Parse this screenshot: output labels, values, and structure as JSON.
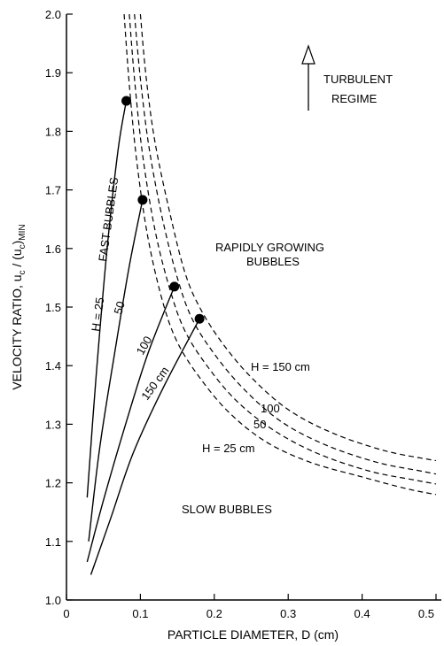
{
  "chart_data": {
    "type": "line",
    "xlabel": "PARTICLE DIAMETER, D (cm)",
    "ylabel": "VELOCITY RATIO, u",
    "ylabel_sub1": "c",
    "ylabel_mid": " / (u",
    "ylabel_sub2": "c",
    "ylabel_end": ")",
    "ylabel_sub3": "MIN",
    "xlim": [
      0,
      0.5
    ],
    "ylim": [
      1.0,
      2.0
    ],
    "xticks": [
      "0",
      "0.1",
      "0.2",
      "0.3",
      "0.4",
      "0.5"
    ],
    "yticks": [
      "1.0",
      "1.1",
      "1.2",
      "1.3",
      "1.4",
      "1.5",
      "1.6",
      "1.7",
      "1.8",
      "1.9",
      "2.0"
    ],
    "xtick_values": [
      0,
      0.1,
      0.2,
      0.3,
      0.4,
      0.5
    ],
    "ytick_values": [
      1.0,
      1.1,
      1.2,
      1.3,
      1.4,
      1.5,
      1.6,
      1.7,
      1.8,
      1.9,
      2.0
    ],
    "grid": false,
    "series": [
      {
        "name": "H = 25",
        "style": "solid",
        "x": [
          0.028,
          0.04,
          0.055,
          0.07,
          0.081
        ],
        "y": [
          1.175,
          1.38,
          1.6,
          1.77,
          1.852
        ]
      },
      {
        "name": "50",
        "style": "solid",
        "x": [
          0.03,
          0.045,
          0.065,
          0.085,
          0.103
        ],
        "y": [
          1.1,
          1.26,
          1.42,
          1.57,
          1.683
        ]
      },
      {
        "name": "100",
        "style": "solid",
        "x": [
          0.028,
          0.05,
          0.08,
          0.11,
          0.146
        ],
        "y": [
          1.065,
          1.17,
          1.3,
          1.42,
          1.535
        ]
      },
      {
        "name": "150 cm",
        "style": "solid",
        "x": [
          0.033,
          0.06,
          0.09,
          0.13,
          0.18
        ],
        "y": [
          1.043,
          1.14,
          1.25,
          1.36,
          1.48
        ]
      },
      {
        "name": "H = 25 cm",
        "style": "dashed",
        "x": [
          0.078,
          0.085,
          0.095,
          0.11,
          0.13,
          0.15,
          0.18,
          0.22,
          0.27,
          0.33,
          0.4,
          0.46,
          0.5
        ],
        "y": [
          2.0,
          1.88,
          1.75,
          1.62,
          1.51,
          1.44,
          1.38,
          1.32,
          1.27,
          1.235,
          1.21,
          1.19,
          1.18
        ]
      },
      {
        "name": "50",
        "style": "dashed",
        "x": [
          0.085,
          0.092,
          0.103,
          0.12,
          0.14,
          0.16,
          0.19,
          0.23,
          0.28,
          0.34,
          0.41,
          0.47,
          0.5
        ],
        "y": [
          2.0,
          1.89,
          1.76,
          1.63,
          1.53,
          1.46,
          1.4,
          1.34,
          1.29,
          1.25,
          1.22,
          1.205,
          1.198
        ]
      },
      {
        "name": "100",
        "style": "dashed",
        "x": [
          0.092,
          0.1,
          0.112,
          0.13,
          0.15,
          0.17,
          0.2,
          0.24,
          0.29,
          0.35,
          0.42,
          0.48,
          0.5
        ],
        "y": [
          2.0,
          1.89,
          1.77,
          1.65,
          1.55,
          1.48,
          1.42,
          1.36,
          1.305,
          1.265,
          1.235,
          1.22,
          1.215
        ]
      },
      {
        "name": "H = 150 cm",
        "style": "dashed",
        "x": [
          0.1,
          0.108,
          0.12,
          0.14,
          0.16,
          0.18,
          0.21,
          0.25,
          0.3,
          0.36,
          0.43,
          0.49,
          0.5
        ],
        "y": [
          2.0,
          1.89,
          1.78,
          1.66,
          1.56,
          1.5,
          1.44,
          1.38,
          1.325,
          1.285,
          1.255,
          1.24,
          1.238
        ]
      }
    ],
    "markers": [
      {
        "x": 0.081,
        "y": 1.852
      },
      {
        "x": 0.103,
        "y": 1.683
      },
      {
        "x": 0.146,
        "y": 1.535
      },
      {
        "x": 0.18,
        "y": 1.48
      }
    ],
    "annotations": {
      "turbulent": [
        "TURBULENT",
        "REGIME"
      ],
      "rapid": [
        "RAPIDLY GROWING",
        "BUBBLES"
      ],
      "fast": "FAST BUBBLES",
      "slow": "SLOW BUBBLES",
      "label_h25": "H = 25",
      "label_50": "50",
      "label_100": "100",
      "label_150": "150 cm",
      "label_dh150": "H = 150 cm",
      "label_d100": "100",
      "label_d50": "50",
      "label_dh25": "H = 25 cm"
    }
  }
}
